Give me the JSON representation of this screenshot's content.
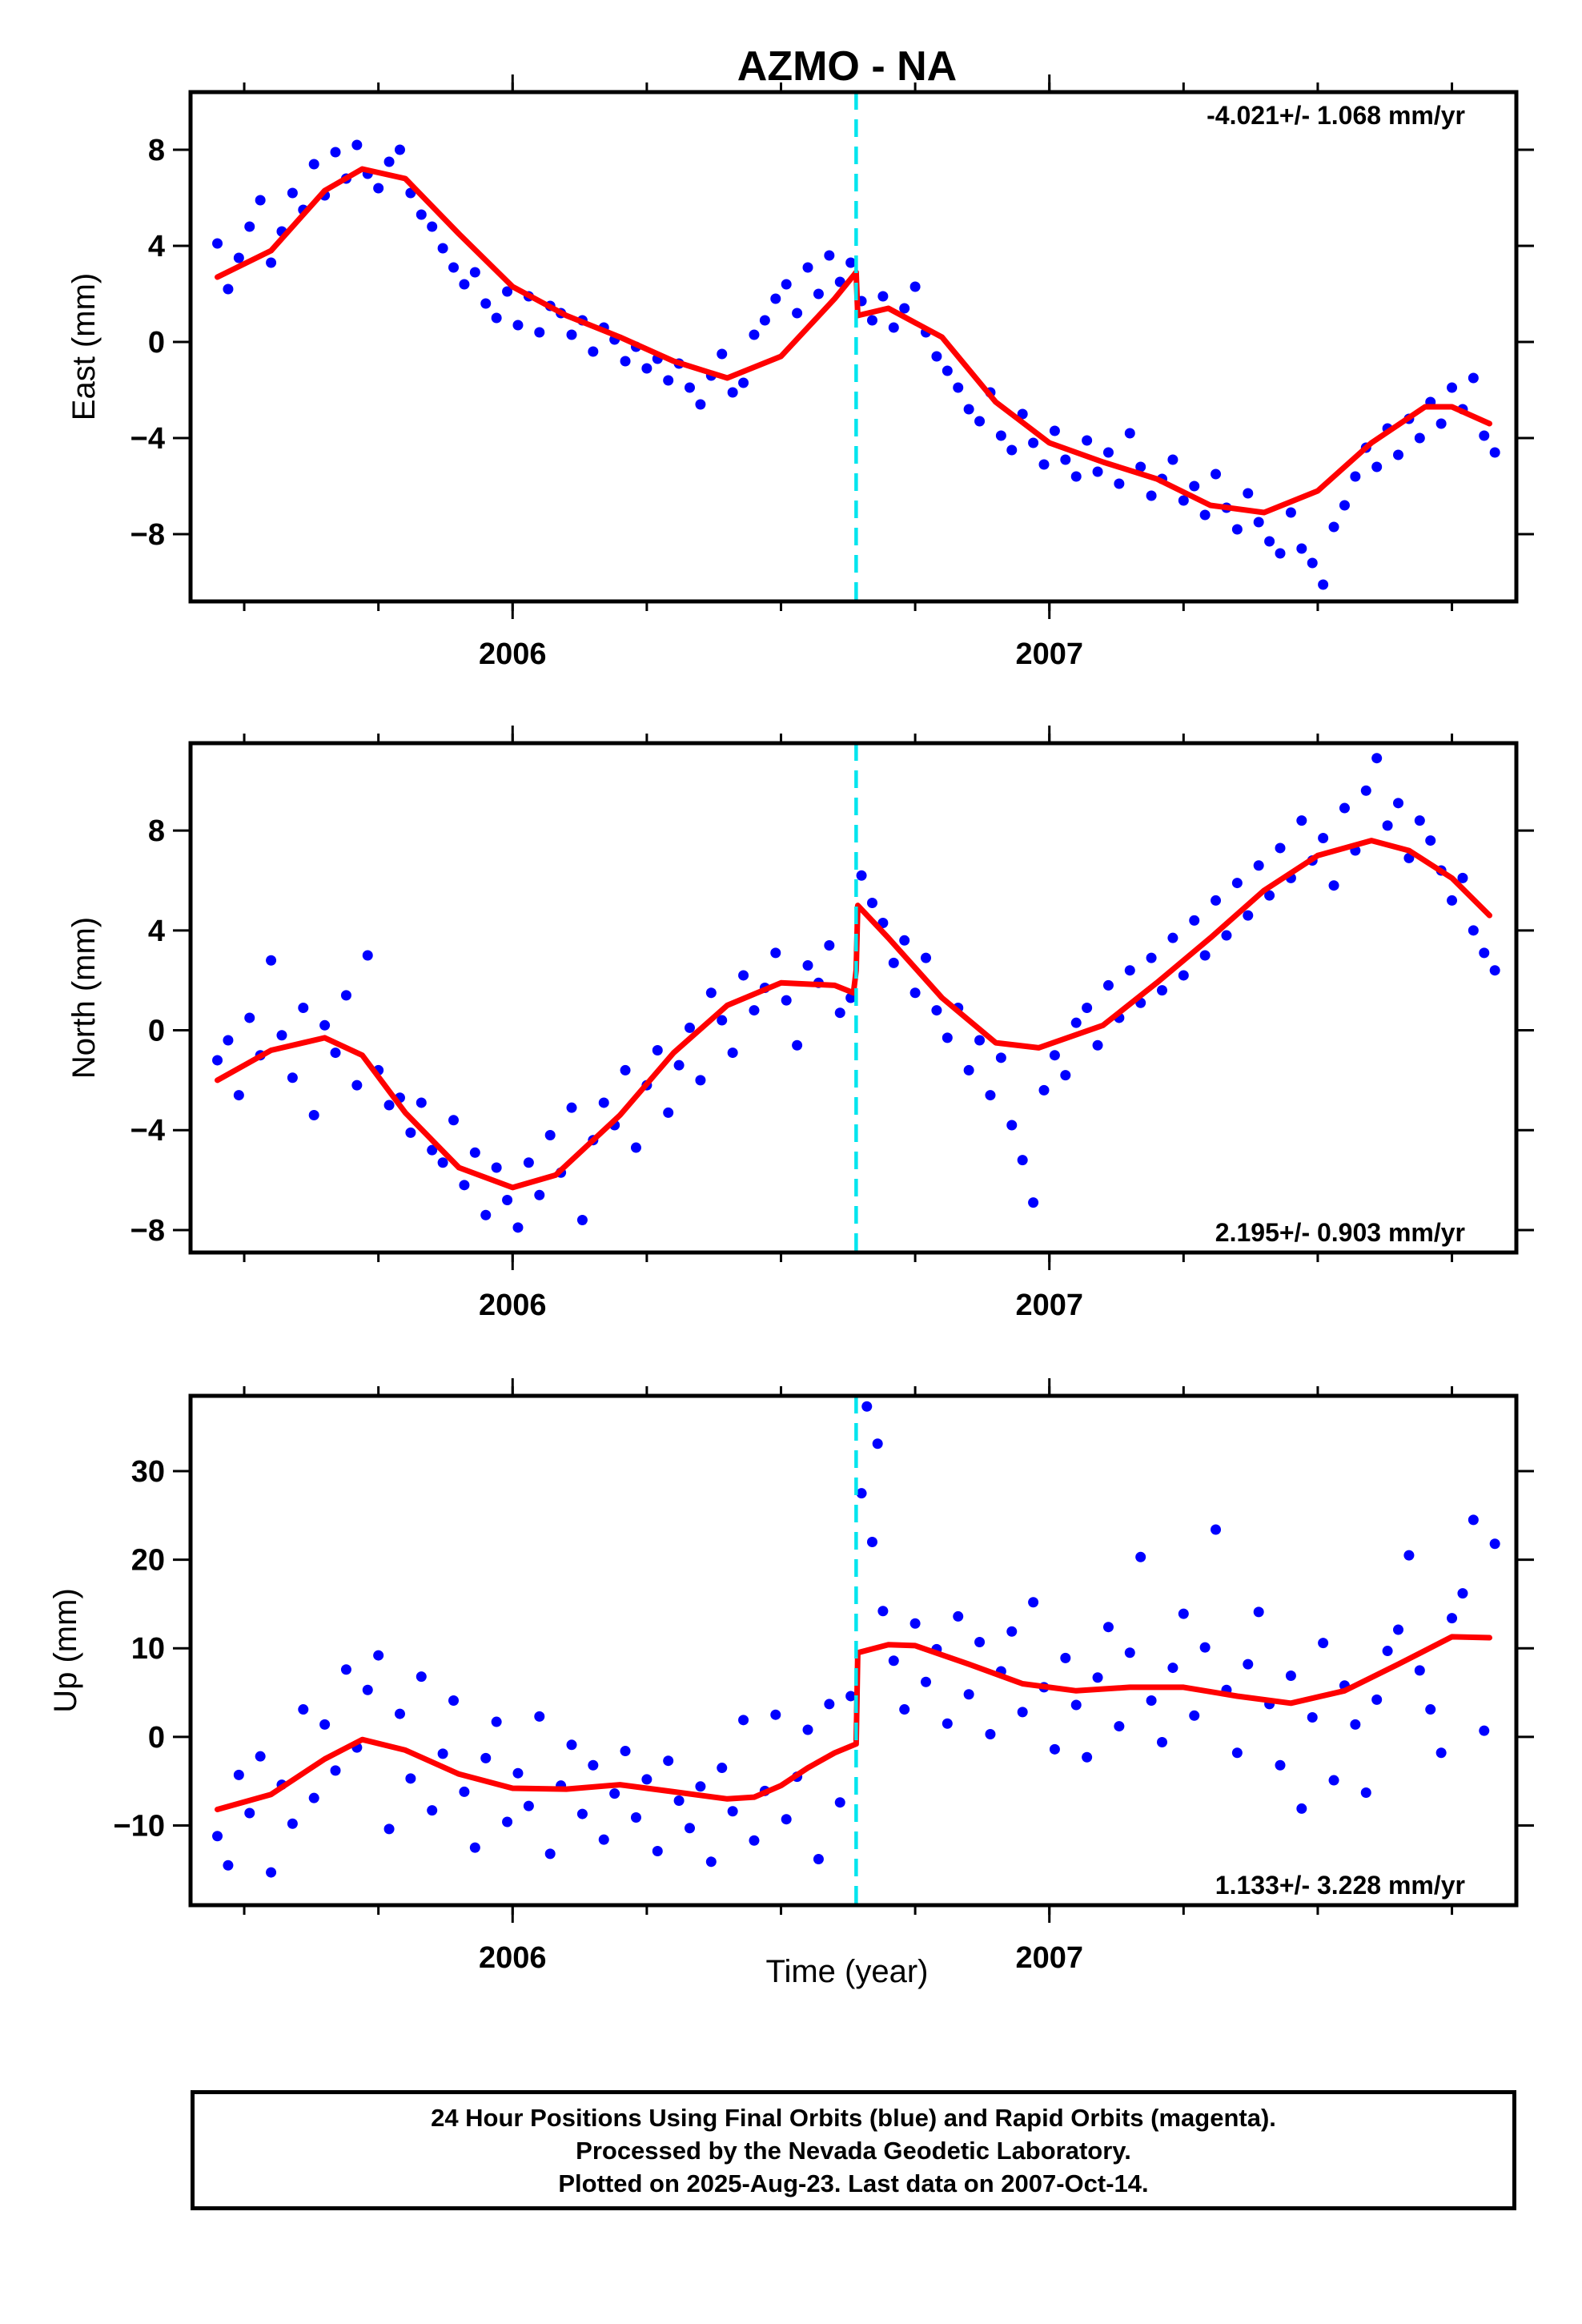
{
  "title": "AZMO - NA",
  "x_axis_label": "Time (year)",
  "colors": {
    "points": "#0000ff",
    "fit": "#ff0000",
    "event": "#00e5ee",
    "frame": "#000000"
  },
  "footer": {
    "line1": "24 Hour Positions Using Final Orbits (blue) and Rapid Orbits (magenta).",
    "line2": "Processed by the Nevada Geodetic Laboratory.",
    "line3": "Plotted on 2025-Aug-23. Last data on 2007-Oct-14."
  },
  "chart_data": [
    {
      "type": "scatter",
      "ylabel": "East (mm)",
      "xlim": [
        2005.4,
        2007.87
      ],
      "ylim": [
        -10.8,
        10.4
      ],
      "yticks": [
        8,
        4,
        0,
        -4,
        -8
      ],
      "ytick_labels": [
        "8",
        "4",
        "0",
        "−4",
        "−8"
      ],
      "xtick_labels": [
        "2006",
        "2007"
      ],
      "xticks": [
        2006,
        2007
      ],
      "event_x": 2006.64,
      "rate_label": "-4.021+/- 1.068 mm/yr",
      "rate_position": "top-right",
      "fit": {
        "x": [
          2005.45,
          2005.55,
          2005.65,
          2005.72,
          2005.8,
          2005.9,
          2006.0,
          2006.1,
          2006.2,
          2006.3,
          2006.4,
          2006.5,
          2006.6,
          2006.64,
          2006.643,
          2006.7,
          2006.8,
          2006.9,
          2007.0,
          2007.1,
          2007.2,
          2007.3,
          2007.4,
          2007.5,
          2007.6,
          2007.7,
          2007.75,
          2007.82
        ],
        "y": [
          2.7,
          3.8,
          6.3,
          7.2,
          6.8,
          4.5,
          2.3,
          1.1,
          0.2,
          -0.8,
          -1.5,
          -0.6,
          1.8,
          2.9,
          1.1,
          1.4,
          0.2,
          -2.5,
          -4.2,
          -5.0,
          -5.7,
          -6.8,
          -7.1,
          -6.2,
          -4.2,
          -2.7,
          -2.7,
          -3.4
        ]
      },
      "points": {
        "x": [
          2005.45,
          2005.47,
          2005.49,
          2005.51,
          2005.53,
          2005.55,
          2005.57,
          2005.59,
          2005.61,
          2005.63,
          2005.65,
          2005.67,
          2005.69,
          2005.71,
          2005.73,
          2005.75,
          2005.77,
          2005.79,
          2005.81,
          2005.83,
          2005.85,
          2005.87,
          2005.89,
          2005.91,
          2005.93,
          2005.95,
          2005.97,
          2005.99,
          2006.01,
          2006.03,
          2006.05,
          2006.07,
          2006.09,
          2006.11,
          2006.13,
          2006.15,
          2006.17,
          2006.19,
          2006.21,
          2006.23,
          2006.25,
          2006.27,
          2006.29,
          2006.31,
          2006.33,
          2006.35,
          2006.37,
          2006.39,
          2006.41,
          2006.43,
          2006.45,
          2006.47,
          2006.49,
          2006.51,
          2006.53,
          2006.55,
          2006.57,
          2006.59,
          2006.61,
          2006.63,
          2006.65,
          2006.67,
          2006.69,
          2006.71,
          2006.73,
          2006.75,
          2006.77,
          2006.79,
          2006.81,
          2006.83,
          2006.85,
          2006.87,
          2006.89,
          2006.91,
          2006.93,
          2006.95,
          2006.97,
          2006.99,
          2007.01,
          2007.03,
          2007.05,
          2007.07,
          2007.09,
          2007.11,
          2007.13,
          2007.15,
          2007.17,
          2007.19,
          2007.21,
          2007.23,
          2007.25,
          2007.27,
          2007.29,
          2007.31,
          2007.33,
          2007.35,
          2007.37,
          2007.39,
          2007.41,
          2007.43,
          2007.45,
          2007.47,
          2007.49,
          2007.51,
          2007.53,
          2007.55,
          2007.57,
          2007.59,
          2007.61,
          2007.63,
          2007.65,
          2007.67,
          2007.69,
          2007.71,
          2007.73,
          2007.75,
          2007.77,
          2007.79,
          2007.81,
          2007.83
        ],
        "y": [
          4.1,
          2.2,
          3.5,
          4.8,
          5.9,
          3.3,
          4.6,
          6.2,
          5.5,
          7.4,
          6.1,
          7.9,
          6.8,
          8.2,
          7.0,
          6.4,
          7.5,
          8.0,
          6.2,
          5.3,
          4.8,
          3.9,
          3.1,
          2.4,
          2.9,
          1.6,
          1.0,
          2.1,
          0.7,
          1.9,
          0.4,
          1.5,
          1.2,
          0.3,
          0.9,
          -0.4,
          0.6,
          0.1,
          -0.8,
          -0.2,
          -1.1,
          -0.7,
          -1.6,
          -0.9,
          -1.9,
          -2.6,
          -1.4,
          -0.5,
          -2.1,
          -1.7,
          0.3,
          0.9,
          1.8,
          2.4,
          1.2,
          3.1,
          2.0,
          3.6,
          2.5,
          3.3,
          1.7,
          0.9,
          1.9,
          0.6,
          1.4,
          2.3,
          0.4,
          -0.6,
          -1.2,
          -1.9,
          -2.8,
          -3.3,
          -2.1,
          -3.9,
          -4.5,
          -3.0,
          -4.2,
          -5.1,
          -3.7,
          -4.9,
          -5.6,
          -4.1,
          -5.4,
          -4.6,
          -5.9,
          -3.8,
          -5.2,
          -6.4,
          -5.7,
          -4.9,
          -6.6,
          -6.0,
          -7.2,
          -5.5,
          -6.9,
          -7.8,
          -6.3,
          -7.5,
          -8.3,
          -8.8,
          -7.1,
          -8.6,
          -9.2,
          -10.1,
          -7.7,
          -6.8,
          -5.6,
          -4.4,
          -5.2,
          -3.6,
          -4.7,
          -3.2,
          -4.0,
          -2.5,
          -3.4,
          -1.9,
          -2.8,
          -1.5,
          -3.9,
          -4.6
        ]
      }
    },
    {
      "type": "scatter",
      "ylabel": "North (mm)",
      "xlim": [
        2005.4,
        2007.87
      ],
      "ylim": [
        -8.9,
        11.5
      ],
      "yticks": [
        8,
        4,
        0,
        -4,
        -8
      ],
      "ytick_labels": [
        "8",
        "4",
        "0",
        "−4",
        "−8"
      ],
      "xtick_labels": [
        "2006",
        "2007"
      ],
      "xticks": [
        2006,
        2007
      ],
      "event_x": 2006.64,
      "rate_label": "2.195+/- 0.903 mm/yr",
      "rate_position": "bottom-right",
      "fit": {
        "x": [
          2005.45,
          2005.55,
          2005.65,
          2005.72,
          2005.8,
          2005.9,
          2006.0,
          2006.08,
          2006.2,
          2006.3,
          2006.4,
          2006.5,
          2006.6,
          2006.635,
          2006.64,
          2006.643,
          2006.7,
          2006.8,
          2006.9,
          2006.98,
          2007.1,
          2007.2,
          2007.3,
          2007.4,
          2007.5,
          2007.6,
          2007.67,
          2007.75,
          2007.82
        ],
        "y": [
          -2.0,
          -0.8,
          -0.3,
          -1.0,
          -3.3,
          -5.5,
          -6.3,
          -5.8,
          -3.4,
          -0.9,
          1.0,
          1.9,
          1.8,
          1.5,
          2.4,
          5.0,
          3.7,
          1.3,
          -0.5,
          -0.7,
          0.2,
          1.9,
          3.7,
          5.6,
          7.0,
          7.6,
          7.2,
          6.1,
          4.6
        ]
      },
      "points": {
        "x": [
          2005.45,
          2005.47,
          2005.49,
          2005.51,
          2005.53,
          2005.55,
          2005.57,
          2005.59,
          2005.61,
          2005.63,
          2005.65,
          2005.67,
          2005.69,
          2005.71,
          2005.73,
          2005.75,
          2005.77,
          2005.79,
          2005.81,
          2005.83,
          2005.85,
          2005.87,
          2005.89,
          2005.91,
          2005.93,
          2005.95,
          2005.97,
          2005.99,
          2006.01,
          2006.03,
          2006.05,
          2006.07,
          2006.09,
          2006.11,
          2006.13,
          2006.15,
          2006.17,
          2006.19,
          2006.21,
          2006.23,
          2006.25,
          2006.27,
          2006.29,
          2006.31,
          2006.33,
          2006.35,
          2006.37,
          2006.39,
          2006.41,
          2006.43,
          2006.45,
          2006.47,
          2006.49,
          2006.51,
          2006.53,
          2006.55,
          2006.57,
          2006.59,
          2006.61,
          2006.63,
          2006.65,
          2006.67,
          2006.69,
          2006.71,
          2006.73,
          2006.75,
          2006.77,
          2006.79,
          2006.81,
          2006.83,
          2006.85,
          2006.87,
          2006.89,
          2006.91,
          2006.93,
          2006.95,
          2006.97,
          2006.99,
          2007.01,
          2007.03,
          2007.05,
          2007.07,
          2007.09,
          2007.11,
          2007.13,
          2007.15,
          2007.17,
          2007.19,
          2007.21,
          2007.23,
          2007.25,
          2007.27,
          2007.29,
          2007.31,
          2007.33,
          2007.35,
          2007.37,
          2007.39,
          2007.41,
          2007.43,
          2007.45,
          2007.47,
          2007.49,
          2007.51,
          2007.53,
          2007.55,
          2007.57,
          2007.59,
          2007.61,
          2007.63,
          2007.65,
          2007.67,
          2007.69,
          2007.71,
          2007.73,
          2007.75,
          2007.77,
          2007.79,
          2007.81,
          2007.83
        ],
        "y": [
          -1.2,
          -0.4,
          -2.6,
          0.5,
          -1.0,
          2.8,
          -0.2,
          -1.9,
          0.9,
          -3.4,
          0.2,
          -0.9,
          1.4,
          -2.2,
          3.0,
          -1.6,
          -3.0,
          -2.7,
          -4.1,
          -2.9,
          -4.8,
          -5.3,
          -3.6,
          -6.2,
          -4.9,
          -7.4,
          -5.5,
          -6.8,
          -7.9,
          -5.3,
          -6.6,
          -4.2,
          -5.7,
          -3.1,
          -7.6,
          -4.4,
          -2.9,
          -3.8,
          -1.6,
          -4.7,
          -2.2,
          -0.8,
          -3.3,
          -1.4,
          0.1,
          -2.0,
          1.5,
          0.4,
          -0.9,
          2.2,
          0.8,
          1.7,
          3.1,
          1.2,
          -0.6,
          2.6,
          1.9,
          3.4,
          0.7,
          1.3,
          6.2,
          5.1,
          4.3,
          2.7,
          3.6,
          1.5,
          2.9,
          0.8,
          -0.3,
          0.9,
          -1.6,
          -0.4,
          -2.6,
          -1.1,
          -3.8,
          -5.2,
          -6.9,
          -2.4,
          -1.0,
          -1.8,
          0.3,
          0.9,
          -0.6,
          1.8,
          0.5,
          2.4,
          1.1,
          2.9,
          1.6,
          3.7,
          2.2,
          4.4,
          3.0,
          5.2,
          3.8,
          5.9,
          4.6,
          6.6,
          5.4,
          7.3,
          6.1,
          8.4,
          6.8,
          7.7,
          5.8,
          8.9,
          7.2,
          9.6,
          10.9,
          8.2,
          9.1,
          6.9,
          8.4,
          7.6,
          6.4,
          5.2,
          6.1,
          4.0,
          3.1,
          2.4
        ]
      }
    },
    {
      "type": "scatter",
      "ylabel": "Up (mm)",
      "xlim": [
        2005.4,
        2007.87
      ],
      "ylim": [
        -19,
        38.5
      ],
      "yticks": [
        30,
        20,
        10,
        0,
        -10
      ],
      "ytick_labels": [
        "30",
        "20",
        "10",
        "0",
        "−10"
      ],
      "xtick_labels": [
        "2006",
        "2007"
      ],
      "xticks": [
        2006,
        2007
      ],
      "event_x": 2006.64,
      "rate_label": "1.133+/- 3.228 mm/yr",
      "rate_position": "bottom-right",
      "fit": {
        "x": [
          2005.45,
          2005.55,
          2005.65,
          2005.72,
          2005.8,
          2005.9,
          2006.0,
          2006.1,
          2006.2,
          2006.3,
          2006.4,
          2006.45,
          2006.5,
          2006.55,
          2006.6,
          2006.64,
          2006.643,
          2006.7,
          2006.75,
          2006.85,
          2006.95,
          2007.05,
          2007.15,
          2007.25,
          2007.35,
          2007.45,
          2007.55,
          2007.65,
          2007.75,
          2007.82
        ],
        "y": [
          -8.2,
          -6.5,
          -2.5,
          -0.3,
          -1.5,
          -4.2,
          -5.8,
          -5.9,
          -5.4,
          -6.2,
          -7.0,
          -6.8,
          -5.5,
          -3.5,
          -1.8,
          -0.8,
          9.5,
          10.4,
          10.3,
          8.2,
          6.0,
          5.2,
          5.6,
          5.6,
          4.6,
          3.8,
          5.2,
          8.2,
          11.3,
          11.2
        ]
      },
      "points": {
        "x": [
          2005.45,
          2005.47,
          2005.49,
          2005.51,
          2005.53,
          2005.55,
          2005.57,
          2005.59,
          2005.61,
          2005.63,
          2005.65,
          2005.67,
          2005.69,
          2005.71,
          2005.73,
          2005.75,
          2005.77,
          2005.79,
          2005.81,
          2005.83,
          2005.85,
          2005.87,
          2005.89,
          2005.91,
          2005.93,
          2005.95,
          2005.97,
          2005.99,
          2006.01,
          2006.03,
          2006.05,
          2006.07,
          2006.09,
          2006.11,
          2006.13,
          2006.15,
          2006.17,
          2006.19,
          2006.21,
          2006.23,
          2006.25,
          2006.27,
          2006.29,
          2006.31,
          2006.33,
          2006.35,
          2006.37,
          2006.39,
          2006.41,
          2006.43,
          2006.45,
          2006.47,
          2006.49,
          2006.51,
          2006.53,
          2006.55,
          2006.57,
          2006.59,
          2006.61,
          2006.63,
          2006.65,
          2006.66,
          2006.67,
          2006.68,
          2006.69,
          2006.71,
          2006.73,
          2006.75,
          2006.77,
          2006.79,
          2006.81,
          2006.83,
          2006.85,
          2006.87,
          2006.89,
          2006.91,
          2006.93,
          2006.95,
          2006.97,
          2006.99,
          2007.01,
          2007.03,
          2007.05,
          2007.07,
          2007.09,
          2007.11,
          2007.13,
          2007.15,
          2007.17,
          2007.19,
          2007.21,
          2007.23,
          2007.25,
          2007.27,
          2007.29,
          2007.31,
          2007.33,
          2007.35,
          2007.37,
          2007.39,
          2007.41,
          2007.43,
          2007.45,
          2007.47,
          2007.49,
          2007.51,
          2007.53,
          2007.55,
          2007.57,
          2007.59,
          2007.61,
          2007.63,
          2007.65,
          2007.67,
          2007.69,
          2007.71,
          2007.73,
          2007.75,
          2007.77,
          2007.79,
          2007.81,
          2007.83
        ],
        "y": [
          -11.2,
          -14.5,
          -4.3,
          -8.6,
          -2.2,
          -15.3,
          -5.4,
          -9.8,
          3.1,
          -6.9,
          1.4,
          -3.8,
          7.6,
          -1.2,
          5.3,
          9.2,
          -10.4,
          2.6,
          -4.7,
          6.8,
          -8.3,
          -1.9,
          4.1,
          -6.2,
          -12.5,
          -2.4,
          1.7,
          -9.6,
          -4.1,
          -7.8,
          2.3,
          -13.2,
          -5.5,
          -0.9,
          -8.7,
          -3.2,
          -11.6,
          -6.4,
          -1.6,
          -9.1,
          -4.8,
          -12.9,
          -2.7,
          -7.2,
          -10.3,
          -5.6,
          -14.1,
          -3.5,
          -8.4,
          1.9,
          -11.7,
          -6.1,
          2.5,
          -9.3,
          -4.5,
          0.8,
          -13.8,
          3.7,
          -7.4,
          4.6,
          27.5,
          37.3,
          22.0,
          33.1,
          14.2,
          8.6,
          3.1,
          12.8,
          6.2,
          9.9,
          1.5,
          13.6,
          4.8,
          10.7,
          0.3,
          7.4,
          11.9,
          2.8,
          15.2,
          5.6,
          -1.4,
          8.9,
          3.6,
          -2.3,
          6.7,
          12.4,
          1.2,
          9.5,
          20.3,
          4.1,
          -0.6,
          7.8,
          13.9,
          2.4,
          10.1,
          23.4,
          5.3,
          -1.8,
          8.2,
          14.1,
          3.7,
          -3.2,
          6.9,
          -8.1,
          2.2,
          10.6,
          -4.9,
          5.8,
          1.4,
          -6.3,
          4.2,
          9.7,
          12.1,
          20.5,
          7.5,
          3.1,
          -1.8,
          13.4,
          16.2,
          24.5,
          0.7,
          21.8
        ]
      }
    }
  ]
}
